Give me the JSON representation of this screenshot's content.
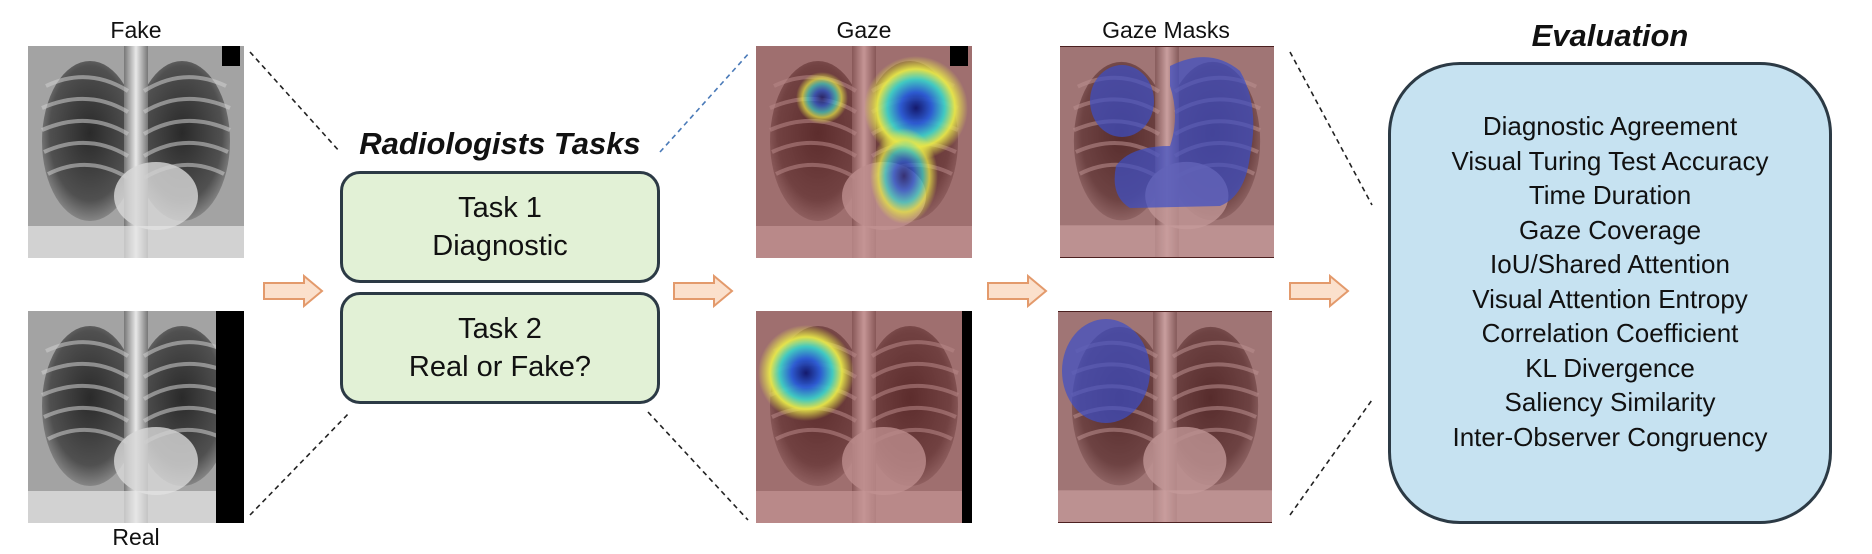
{
  "labels": {
    "fake": "Fake",
    "real": "Real",
    "gaze": "Gaze",
    "gaze_masks": "Gaze Masks"
  },
  "tasks": {
    "title": "Radiologists Tasks",
    "task1": {
      "line1": "Task 1",
      "line2": "Diagnostic"
    },
    "task2": {
      "line1": "Task 2",
      "line2": "Real or Fake?"
    }
  },
  "evaluation": {
    "title": "Evaluation",
    "metrics": [
      "Diagnostic Agreement",
      "Visual Turing Test Accuracy",
      "Time Duration",
      "Gaze Coverage",
      "IoU/Shared Attention",
      "Visual Attention Entropy",
      "Correlation Coefficient",
      "KL Divergence",
      "Saliency Similarity",
      "Inter-Observer Congruency"
    ]
  },
  "colors": {
    "arrow_fill": "#fbe0cc",
    "arrow_stroke": "#e39a6c",
    "task_box": "#e2f1d6",
    "eval_box": "#c6e2f1",
    "mask_blue": "#3c4fc8",
    "xray_tint_red": "#9c3030"
  }
}
